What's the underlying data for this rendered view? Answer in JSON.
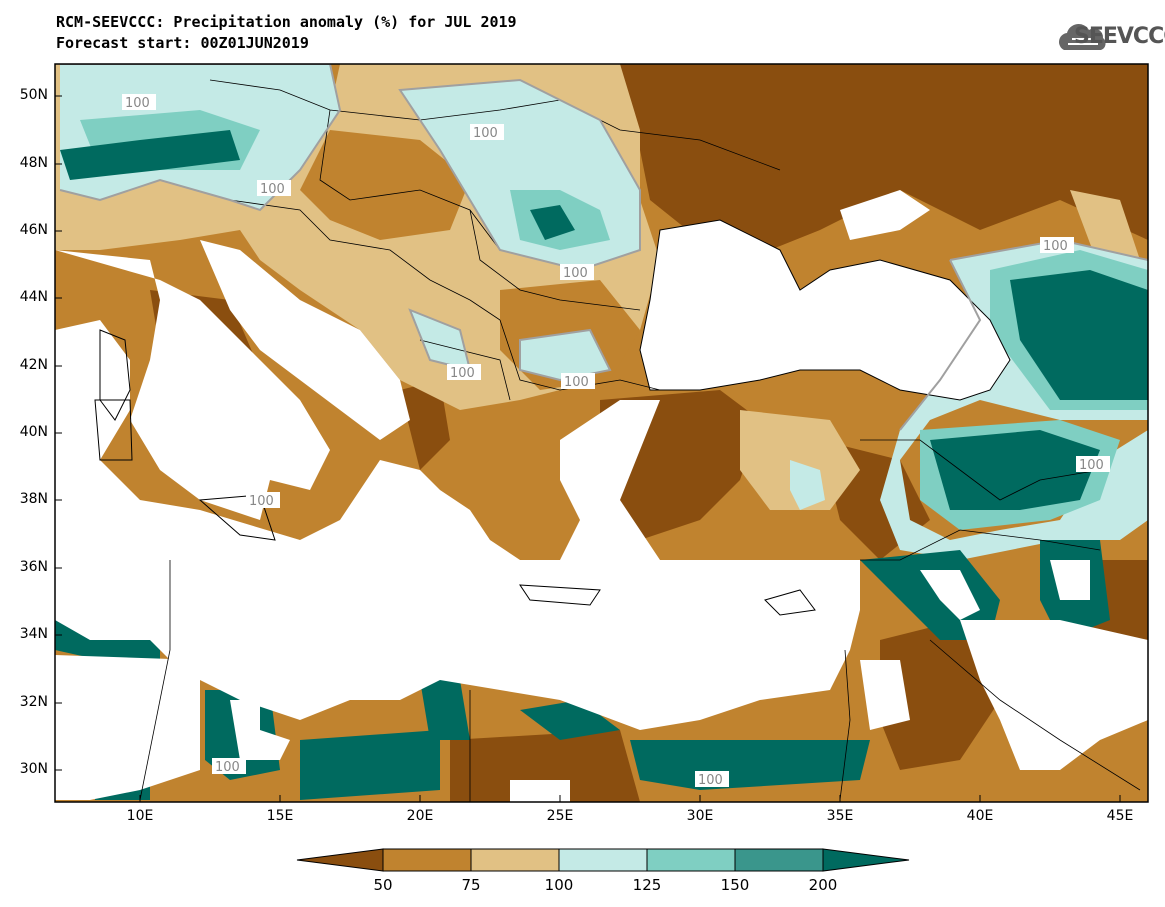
{
  "header": {
    "title_line1": "RCM-SEEVCCC: Precipitation anomaly (%) for JUL 2019",
    "title_line2": "Forecast start: 00Z01JUN2019"
  },
  "logo": {
    "text": "SEEVCCC",
    "icon": "cloud-icon"
  },
  "map": {
    "lat_labels": [
      "50N",
      "48N",
      "46N",
      "44N",
      "42N",
      "40N",
      "38N",
      "36N",
      "34N",
      "32N",
      "30N"
    ],
    "lon_labels": [
      "10E",
      "15E",
      "20E",
      "25E",
      "30E",
      "35E",
      "40E",
      "45E"
    ],
    "contour_labels": [
      "100",
      "100",
      "100",
      "100",
      "100",
      "100",
      "100",
      "100",
      "100",
      "100",
      "100"
    ]
  },
  "colorbar": {
    "levels": [
      "50",
      "75",
      "100",
      "125",
      "150",
      "200"
    ],
    "colors": [
      "#8a4e0f",
      "#c0832f",
      "#e1c184",
      "#c4eae6",
      "#7fcfc2",
      "#3a968c",
      "#006a5f"
    ]
  }
}
